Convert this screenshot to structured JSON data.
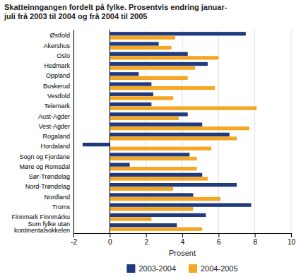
{
  "chart_data": {
    "type": "bar",
    "orientation": "horizontal",
    "title": "Skatteinngangen fordelt på fylke. Prosentvis endring januar-\njuli frå 2003 til 2004 og frå 2004 til 2005",
    "categories": [
      "Østfold",
      "Akershus",
      "Oslo",
      "Hedmark",
      "Oppland",
      "Buskerud",
      "Vestfold",
      "Telemark",
      "Aust-Agder",
      "Vest-Agder",
      "Rogaland",
      "Hordaland",
      "Sogn og Fjordane",
      "Møre og Romsdal",
      "Sør-Trøndelag",
      "Nord-Trøndelag",
      "Nordland",
      "Troms",
      "Finnmark Finnmárku",
      "Sum fylke utan\nkontinentalsokkelen"
    ],
    "series": [
      {
        "name": "2003-2004",
        "color": "#1f3a7d",
        "values": [
          7.5,
          2.7,
          4.3,
          5.4,
          1.6,
          2.3,
          2.4,
          2.3,
          4.3,
          5.1,
          6.6,
          -1.5,
          4.4,
          1.1,
          5.1,
          7.0,
          4.6,
          7.8,
          5.3,
          3.7
        ]
      },
      {
        "name": "2004-2005",
        "color": "#f5a623",
        "values": [
          3.6,
          3.4,
          6.0,
          4.7,
          4.3,
          5.8,
          3.5,
          8.1,
          3.8,
          7.7,
          7.0,
          5.6,
          4.8,
          4.8,
          5.4,
          3.5,
          6.1,
          4.6,
          2.3,
          5.1
        ]
      }
    ],
    "xlabel": "Prosent",
    "xlim": [
      -2,
      10
    ],
    "xticks": [
      -2,
      0,
      2,
      4,
      6,
      8,
      10
    ],
    "grid": true,
    "legend": "bottom"
  }
}
